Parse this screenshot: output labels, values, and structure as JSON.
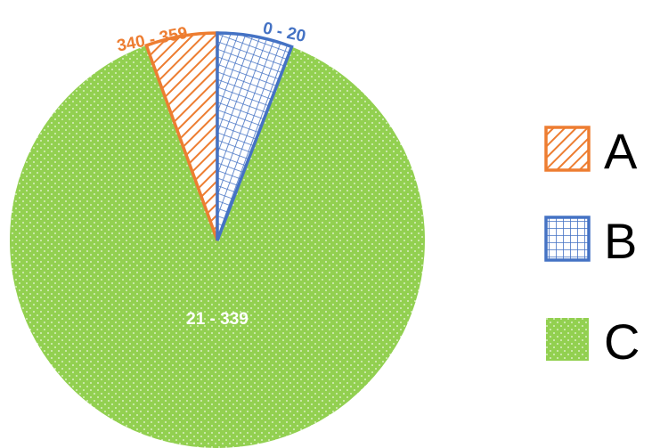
{
  "chart_data": {
    "type": "pie",
    "title": "",
    "slices": [
      {
        "legend": "A",
        "label": "340 - 359",
        "start_deg": 340,
        "end_deg": 359,
        "pattern": "diagonal-hatch",
        "color": "#ED7D31"
      },
      {
        "legend": "B",
        "label": "0 - 20",
        "start_deg": 0,
        "end_deg": 20,
        "pattern": "crosshatch",
        "color": "#4472C4"
      },
      {
        "legend": "C",
        "label": "21 - 339",
        "start_deg": 21,
        "end_deg": 339,
        "pattern": "dotted",
        "color": "#92D050"
      }
    ],
    "legend": {
      "position": "right",
      "entries": [
        "A",
        "B",
        "C"
      ]
    }
  }
}
